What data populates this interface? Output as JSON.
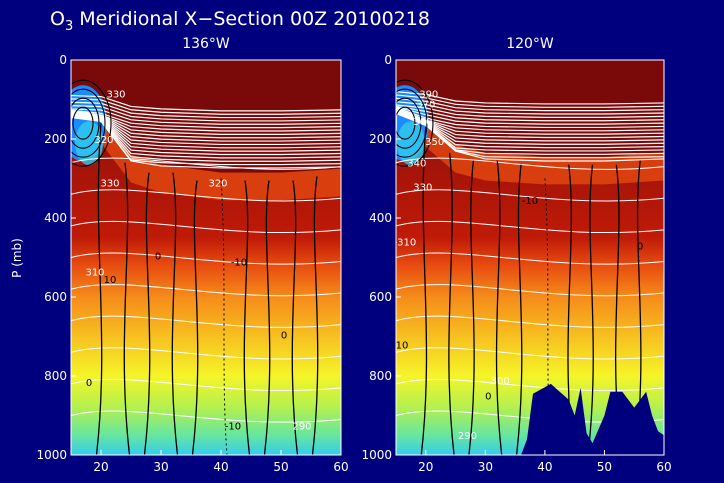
{
  "title": {
    "species_main": "O",
    "species_sub": "3",
    "rest": " Meridional X−Section 00Z 20100218"
  },
  "colors": {
    "background": "#00007f",
    "isentrope_lines": "#ffffff",
    "contour_lines": "#000000",
    "colormap": [
      "#1a8cff",
      "#33ccee",
      "#66e6a0",
      "#b3f050",
      "#f5f528",
      "#f7c020",
      "#f58c1a",
      "#e84c10",
      "#c01a08",
      "#7a0a0a"
    ]
  },
  "chart_data": [
    {
      "type": "heatmap",
      "title": "136°W",
      "xlabel": "",
      "ylabel": "P (mb)",
      "xlim": [
        15,
        60
      ],
      "ylim": [
        1000,
        0
      ],
      "y_inverted": true,
      "x_ticks": [
        20,
        30,
        40,
        50,
        60
      ],
      "y_ticks": [
        0,
        200,
        400,
        600,
        800,
        1000
      ],
      "x_tick_labels": [
        "20",
        "30",
        "40",
        "50",
        "60"
      ],
      "y_tick_labels": [
        "0",
        "200",
        "400",
        "600",
        "800",
        "1000"
      ],
      "tropopause_pressure": [
        [
          15,
          130
        ],
        [
          20,
          140
        ],
        [
          25,
          240
        ],
        [
          30,
          265
        ],
        [
          40,
          285
        ],
        [
          50,
          285
        ],
        [
          60,
          275
        ]
      ],
      "low_ozone_core": {
        "x": 17,
        "p": 160
      },
      "terrain": [],
      "contour_annotations": [
        {
          "text": "330",
          "x": 22.5,
          "p": 95,
          "color": "white"
        },
        {
          "text": "320",
          "x": 20.5,
          "p": 210,
          "color": "white"
        },
        {
          "text": "330",
          "x": 21.5,
          "p": 320,
          "color": "white"
        },
        {
          "text": "320",
          "x": 39.5,
          "p": 320,
          "color": "white"
        },
        {
          "text": "310",
          "x": 19.0,
          "p": 545,
          "color": "white"
        },
        {
          "text": "10",
          "x": 21.5,
          "p": 565,
          "color": "black"
        },
        {
          "text": "0",
          "x": 29.5,
          "p": 505,
          "color": "black"
        },
        {
          "text": "-10",
          "x": 43.0,
          "p": 520,
          "color": "black"
        },
        {
          "text": "0",
          "x": 50.5,
          "p": 705,
          "color": "black"
        },
        {
          "text": "0",
          "x": 18.0,
          "p": 825,
          "color": "black"
        },
        {
          "text": "-10",
          "x": 42.0,
          "p": 935,
          "color": "black"
        },
        {
          "text": "290",
          "x": 53.5,
          "p": 935,
          "color": "white"
        }
      ]
    },
    {
      "type": "heatmap",
      "title": "120°W",
      "xlabel": "",
      "ylabel": "",
      "xlim": [
        15,
        60
      ],
      "ylim": [
        1000,
        0
      ],
      "y_inverted": true,
      "x_ticks": [
        20,
        30,
        40,
        50,
        60
      ],
      "y_ticks": [
        0,
        200,
        400,
        600,
        800,
        1000
      ],
      "x_tick_labels": [
        "20",
        "30",
        "40",
        "50",
        "60"
      ],
      "y_tick_labels": [
        "0",
        "200",
        "400",
        "600",
        "800",
        "1000"
      ],
      "tropopause_pressure": [
        [
          15,
          120
        ],
        [
          20,
          150
        ],
        [
          25,
          215
        ],
        [
          30,
          235
        ],
        [
          40,
          245
        ],
        [
          50,
          245
        ],
        [
          60,
          235
        ]
      ],
      "low_ozone_core": {
        "x": 16.5,
        "p": 160
      },
      "terrain": [
        [
          36,
          1000
        ],
        [
          37,
          960
        ],
        [
          38,
          845
        ],
        [
          41,
          820
        ],
        [
          44,
          860
        ],
        [
          45,
          900
        ],
        [
          46,
          830
        ],
        [
          47,
          945
        ],
        [
          48,
          970
        ],
        [
          50,
          900
        ],
        [
          51,
          840
        ],
        [
          53,
          840
        ],
        [
          55,
          880
        ],
        [
          56,
          860
        ],
        [
          57,
          840
        ],
        [
          58,
          900
        ],
        [
          59,
          940
        ],
        [
          60,
          950
        ],
        [
          60,
          1000
        ]
      ],
      "contour_annotations": [
        {
          "text": "390",
          "x": 20.5,
          "p": 95,
          "color": "white"
        },
        {
          "text": "370",
          "x": 20.0,
          "p": 120,
          "color": "white"
        },
        {
          "text": "360",
          "x": 19.5,
          "p": 165,
          "color": "white"
        },
        {
          "text": "350",
          "x": 21.5,
          "p": 215,
          "color": "white"
        },
        {
          "text": "340",
          "x": 18.5,
          "p": 270,
          "color": "white"
        },
        {
          "text": "330",
          "x": 19.5,
          "p": 330,
          "color": "white"
        },
        {
          "text": "-10",
          "x": 37.5,
          "p": 365,
          "color": "black"
        },
        {
          "text": "-310",
          "x": 16.5,
          "p": 470,
          "color": "white"
        },
        {
          "text": "0",
          "x": 56.0,
          "p": 480,
          "color": "black"
        },
        {
          "text": "10",
          "x": 16.0,
          "p": 730,
          "color": "black"
        },
        {
          "text": "300",
          "x": 32.5,
          "p": 820,
          "color": "white"
        },
        {
          "text": "0",
          "x": 30.5,
          "p": 860,
          "color": "black"
        },
        {
          "text": "290",
          "x": 27.0,
          "p": 960,
          "color": "white"
        }
      ]
    }
  ]
}
